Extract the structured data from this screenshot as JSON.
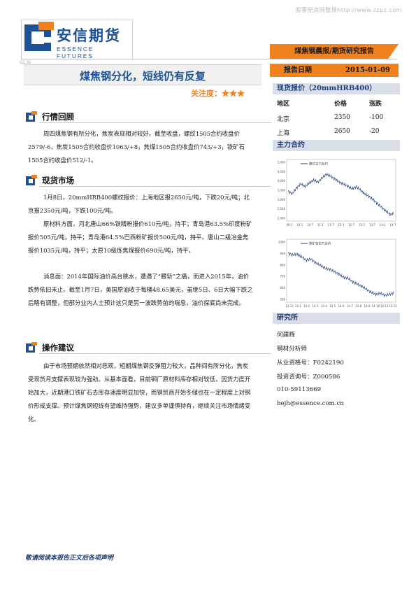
{
  "watermark": "股票配资网整理http://www.zzpz.com",
  "logo": {
    "cn": "安信期货",
    "en": "ESSENCE FUTURES"
  },
  "corner_mark": "CC SI",
  "banner": {
    "report_type": "煤焦钢晨报/期货研究报告",
    "date_label": "报告日期",
    "date_value": "2015-01-09"
  },
  "title": "煤焦钢分化，短线仍有反复",
  "attention": "关注度：★★★",
  "sections": {
    "review": {
      "title": "行情回顾",
      "text": "周四煤焦钢有所分化，焦炭表现相对较好。截至收盘，螺纹1505合约收盘价2579/-6，焦炭1505合约收盘价1063/+8，焦煤1505合约收盘价743/+3，铁矿石1505合约收盘价512/-1。"
    },
    "spot_market": {
      "title": "现货市场",
      "para1": "1月8日，20mmHRB400螺纹报价：上海地区报2650元/吨，下跌20元/吨；北京报2350元/吨，下跌100元/吨。",
      "para2": "原材料方面，河北唐山66%铁精粉报价610元/吨，持平；青岛港63.5%印度粉矿报价505元/吨，持平；青岛港64.5%巴西粉矿报价500元/吨，持平。唐山二级冶金焦报价1035元/吨，持平；太原10级炼焦煤报价690元/吨，持平。",
      "para3": "消息面：2014年国际油价高台跳水，遭遇了“腰斩”之痛，而进入2015年，油价跌势依旧未止。截至1月7日，美国原油收于每桶48.65美元，虽继5日、6日大幅下跌之后略有调整，但部分业内人士预计这只是另一波跌势前的喘息，油价探底尚未完成。"
    },
    "advice": {
      "title": "操作建议",
      "text": "由于市场预期依然相对悲观，短期煤焦钢反弹阻力较大，品种间有所分化，焦炭受现货月支撑表现较为强劲。从基本面看，目前钢厂原材料库存相对较低，因货力度开始加大，近期港口铁矿石去库存速度明显加快，而钢贸商开始冬储也在一定程度上对钢价形成支撑。预计煤焦钢短线有望维持强势，建议多单谨慎持有，继续关注市场情绪变化。"
    }
  },
  "spot_quote": {
    "title": "现货报价（20mmHRB400）",
    "headers": [
      "地区",
      "价格",
      "涨跌"
    ],
    "rows": [
      {
        "region": "北京",
        "price": "2350",
        "change": "-100"
      },
      {
        "region": "上海",
        "price": "2650",
        "change": "-20"
      }
    ]
  },
  "main_contract_title": "主力合约",
  "charts": [
    {
      "legend": "螺纹主力合约",
      "y_ticks": [
        "5,000",
        "4,500",
        "4,000",
        "3,500",
        "3,000",
        "2,500",
        "2,000"
      ],
      "x_ticks": [
        "09-1",
        "10-1",
        "10-7",
        "11-1",
        "11-7",
        "12-1",
        "12-7",
        "13-1",
        "13-7",
        "14-1",
        "14-7"
      ],
      "values": [
        0.55,
        0.5,
        0.62,
        0.7,
        0.65,
        0.72,
        0.78,
        0.74,
        0.82,
        0.9,
        0.86,
        0.8,
        0.74,
        0.7,
        0.66,
        0.6,
        0.64,
        0.58,
        0.5,
        0.45,
        0.38,
        0.3,
        0.22,
        0.15,
        0.08,
        0.1
      ]
    },
    {
      "legend": "铁矿石主力合约",
      "y_ticks": [
        "1000",
        "900",
        "800",
        "700",
        "600",
        "500"
      ],
      "x_ticks": [
        "13-12",
        "14-1",
        "14-2",
        "14-3",
        "14-4",
        "14-5",
        "14-6",
        "14-7",
        "14-8",
        "14-9",
        "14-10",
        "14-11",
        "14-12"
      ],
      "values": [
        0.92,
        0.88,
        0.9,
        0.84,
        0.78,
        0.8,
        0.72,
        0.68,
        0.62,
        0.6,
        0.55,
        0.5,
        0.44,
        0.42,
        0.35,
        0.3,
        0.26,
        0.2,
        0.14,
        0.1,
        0.12,
        0.08,
        0.1,
        0.14
      ]
    }
  ],
  "research": {
    "title": "研究所",
    "lines": [
      "何建辉",
      "钢材分析师",
      "从业资格号：F0242190",
      "投资咨询号：Z000586",
      "010-59113669",
      "hejh@essence.com.cn"
    ]
  },
  "footer": "敬请阅读本报告正文后各项声明",
  "colors": {
    "brand_blue": "#1d5296",
    "accent_orange": "#f0821e"
  }
}
